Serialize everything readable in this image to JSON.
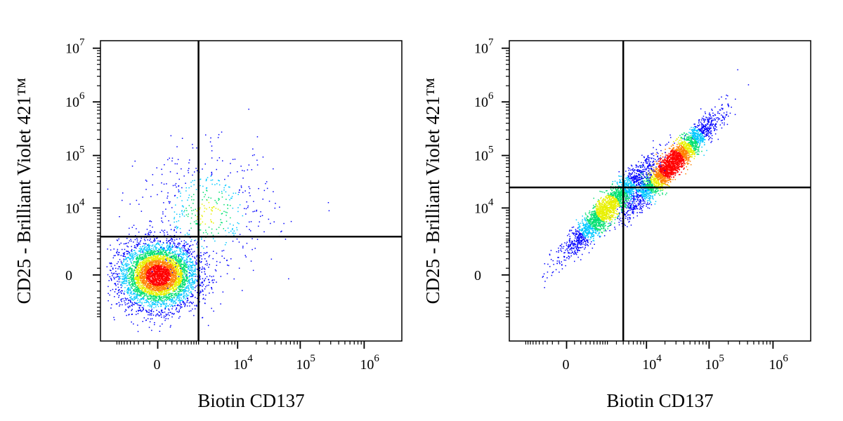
{
  "chart_data": [
    {
      "type": "scatter",
      "plot_style": "flow-cytometry-density-dot-plot",
      "xlabel": "Biotin CD137",
      "ylabel": "CD25 - Brilliant Violet 421™",
      "x_scale": "biexponential",
      "y_scale": "biexponential",
      "x_tick_labels": [
        {
          "base": "0",
          "exp": ""
        },
        {
          "base": "10",
          "exp": "4"
        },
        {
          "base": "10",
          "exp": "5"
        },
        {
          "base": "10",
          "exp": "6"
        }
      ],
      "y_tick_labels": [
        {
          "base": "0",
          "exp": ""
        },
        {
          "base": "10",
          "exp": "4"
        },
        {
          "base": "10",
          "exp": "5"
        },
        {
          "base": "10",
          "exp": "6"
        },
        {
          "base": "10",
          "exp": "7"
        }
      ],
      "quadrant_gate": {
        "x": 2000,
        "y": 2500
      },
      "populations": [
        {
          "center_x": 0,
          "center_y": 0,
          "share": 0.9
        },
        {
          "center_x": 3000,
          "center_y": 8000,
          "share": 0.1
        }
      ],
      "density_colors": [
        "#0000ff",
        "#00c8ff",
        "#00e070",
        "#e8f000",
        "#ff8000",
        "#ff0000"
      ]
    },
    {
      "type": "scatter",
      "plot_style": "flow-cytometry-density-dot-plot",
      "xlabel": "Biotin CD137",
      "ylabel": "CD25 - Brilliant Violet 421™",
      "x_scale": "biexponential",
      "y_scale": "biexponential",
      "x_tick_labels": [
        {
          "base": "0",
          "exp": ""
        },
        {
          "base": "10",
          "exp": "4"
        },
        {
          "base": "10",
          "exp": "5"
        },
        {
          "base": "10",
          "exp": "6"
        }
      ],
      "y_tick_labels": [
        {
          "base": "0",
          "exp": ""
        },
        {
          "base": "10",
          "exp": "4"
        },
        {
          "base": "10",
          "exp": "5"
        },
        {
          "base": "10",
          "exp": "6"
        },
        {
          "base": "10",
          "exp": "7"
        }
      ],
      "quadrant_gate": {
        "x": 4000,
        "y": 25000
      },
      "populations": [
        {
          "center_x": 25000,
          "center_y": 70000,
          "share": 0.55
        },
        {
          "center_x": 2000,
          "center_y": 10000,
          "share": 0.45
        }
      ],
      "density_colors": [
        "#0000ff",
        "#00c8ff",
        "#00e070",
        "#e8f000",
        "#ff8000",
        "#ff0000"
      ]
    }
  ]
}
